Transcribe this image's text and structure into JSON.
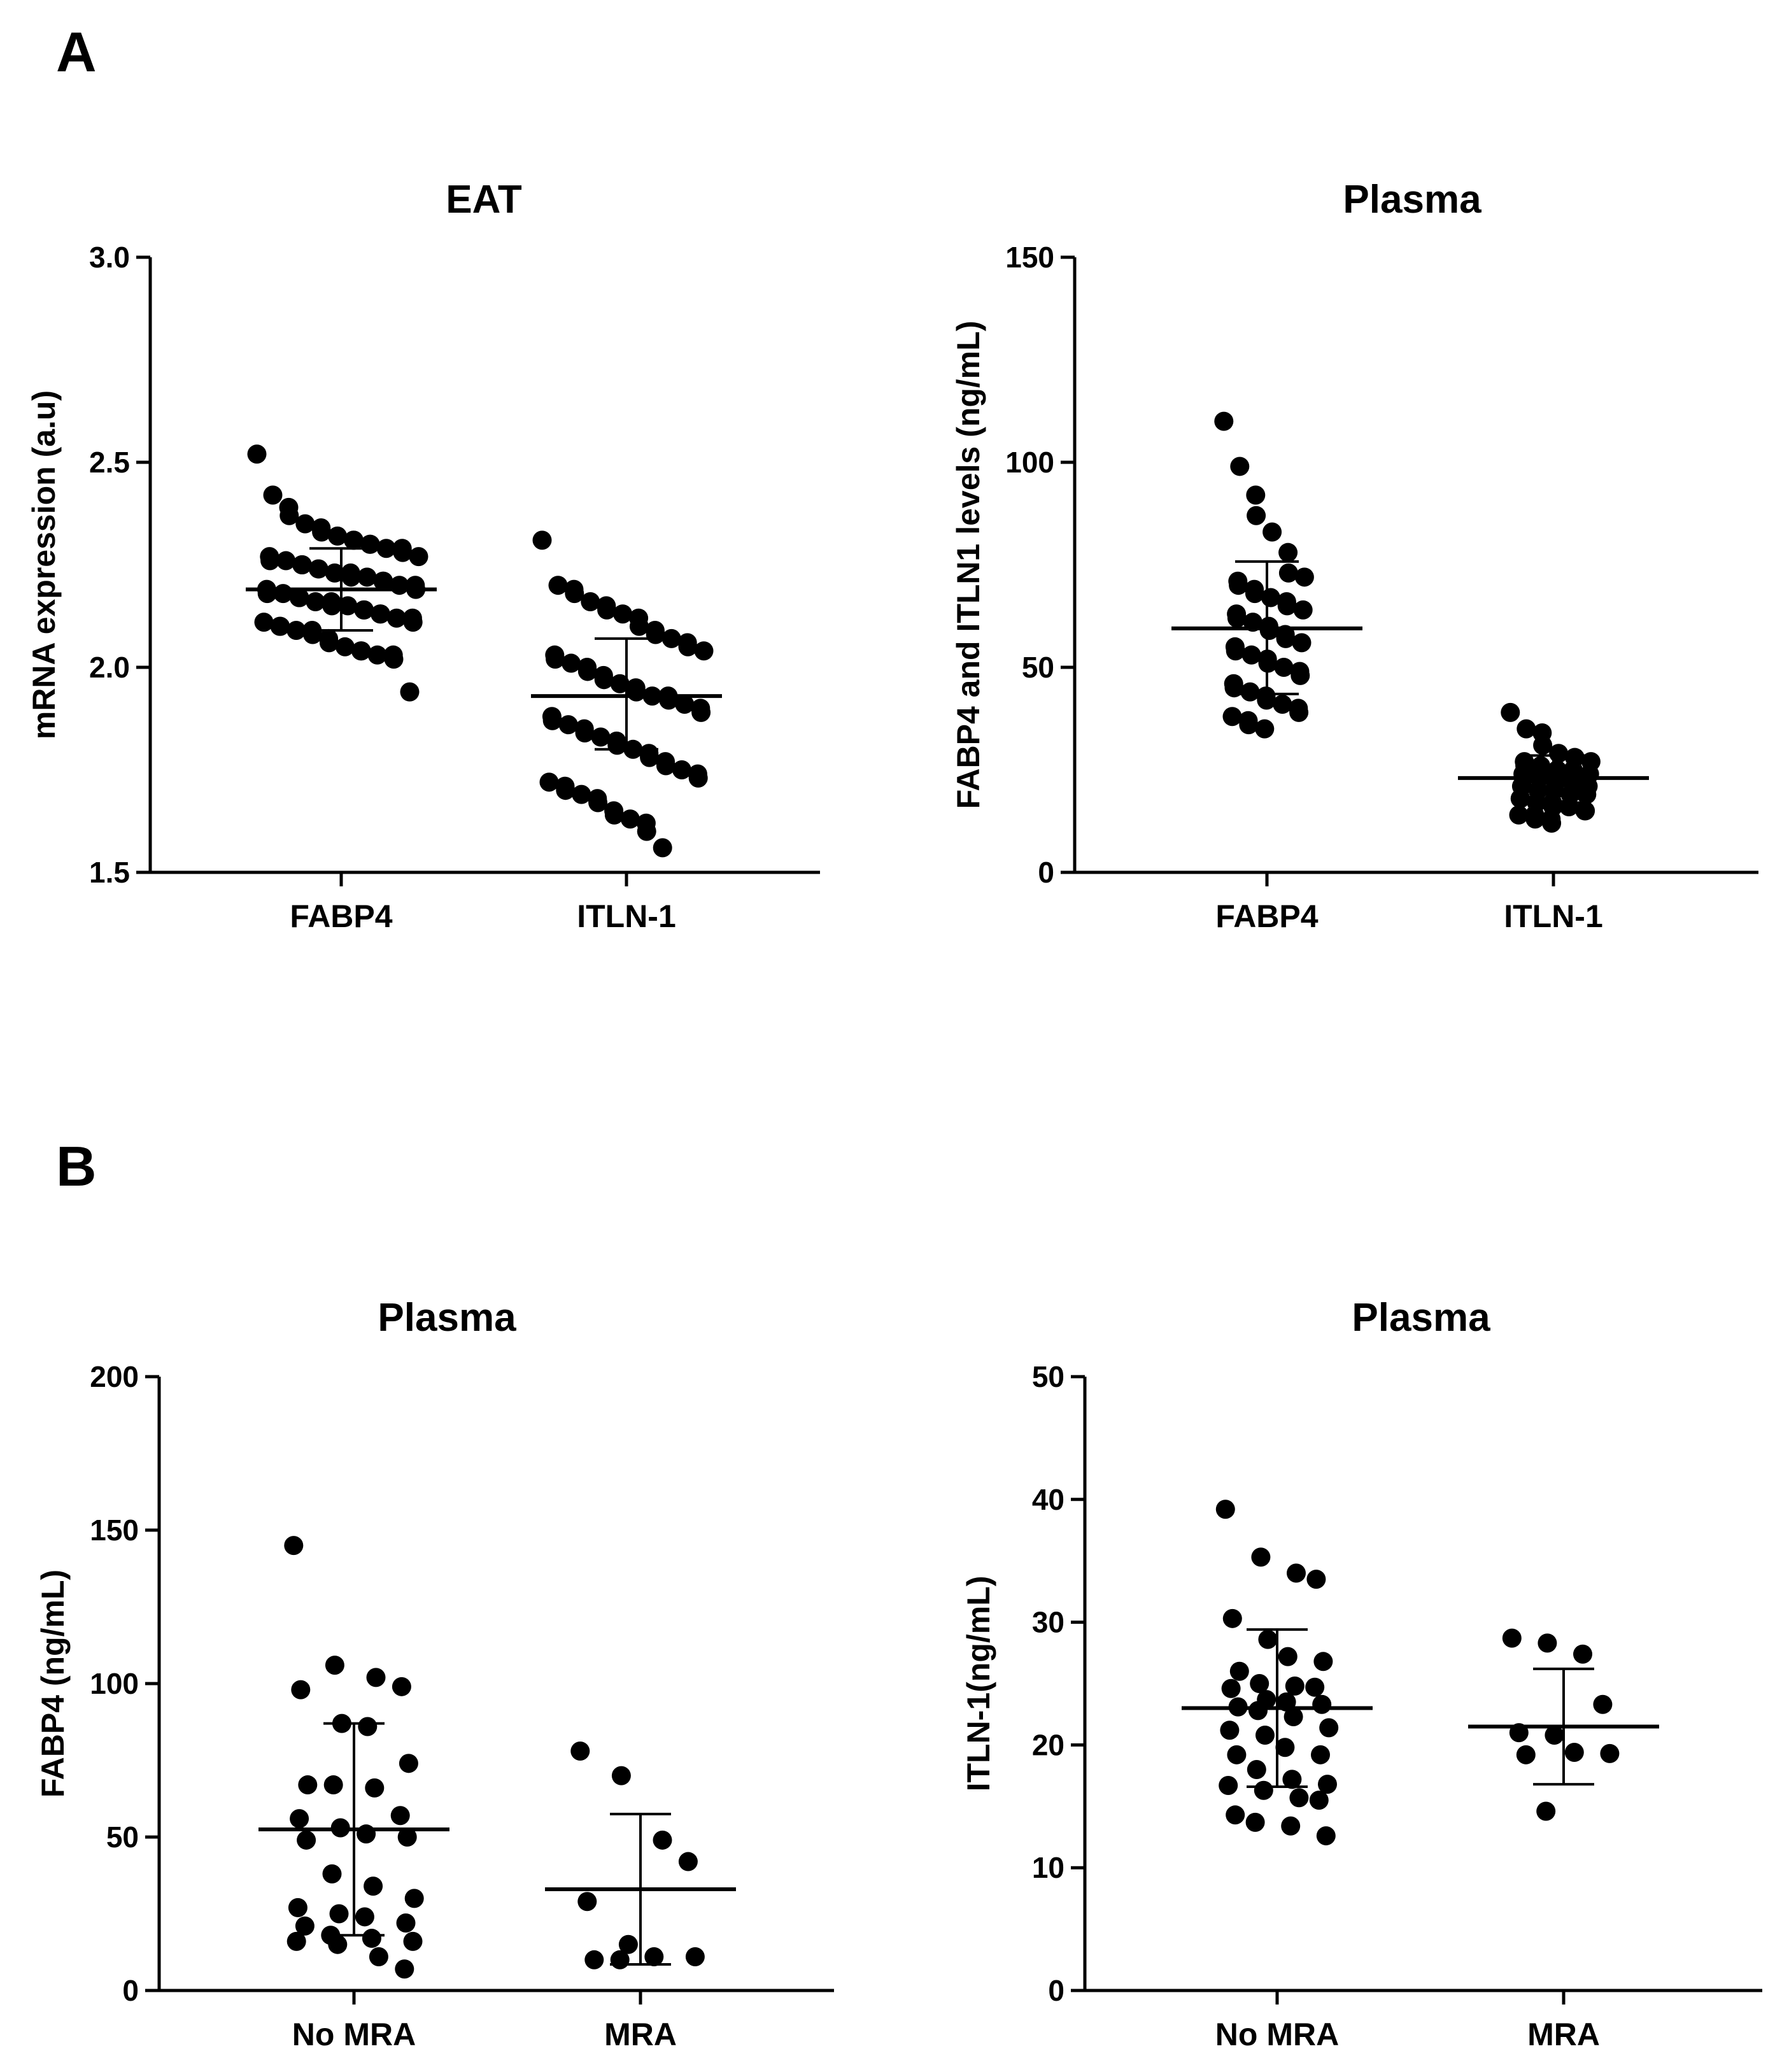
{
  "panel_labels": {
    "a": "A",
    "b": "B"
  },
  "chart_data": [
    {
      "id": "eat",
      "type": "scatter",
      "title": "EAT",
      "ylabel": "mRNA expression (a.u)",
      "ylim": [
        1.5,
        3.0
      ],
      "yticks": [
        1.5,
        2.0,
        2.5,
        3.0
      ],
      "ytick_labels": [
        "1.5",
        "2.0",
        "2.5",
        "3.0"
      ],
      "categories": [
        "FABP4",
        "ITLN-1"
      ],
      "groups": [
        {
          "category": "FABP4",
          "mean": 2.19,
          "sd_low": 2.09,
          "sd_high": 2.29,
          "values": [
            2.52,
            2.42,
            2.39,
            2.37,
            2.35,
            2.34,
            2.33,
            2.32,
            2.31,
            2.31,
            2.3,
            2.3,
            2.29,
            2.29,
            2.28,
            2.27,
            2.27,
            2.26,
            2.26,
            2.25,
            2.25,
            2.24,
            2.24,
            2.23,
            2.23,
            2.22,
            2.22,
            2.21,
            2.21,
            2.2,
            2.2,
            2.19,
            2.19,
            2.18,
            2.18,
            2.17,
            2.17,
            2.16,
            2.16,
            2.15,
            2.15,
            2.14,
            2.14,
            2.13,
            2.13,
            2.12,
            2.12,
            2.11,
            2.11,
            2.1,
            2.1,
            2.09,
            2.09,
            2.08,
            2.07,
            2.06,
            2.05,
            2.04,
            2.04,
            2.03,
            2.03,
            2.02,
            1.94
          ]
        },
        {
          "category": "ITLN-1",
          "mean": 1.93,
          "sd_low": 1.8,
          "sd_high": 2.07,
          "values": [
            2.31,
            2.2,
            2.19,
            2.18,
            2.16,
            2.15,
            2.14,
            2.13,
            2.12,
            2.1,
            2.09,
            2.08,
            2.07,
            2.06,
            2.05,
            2.04,
            2.03,
            2.02,
            2.01,
            2.0,
            1.99,
            1.98,
            1.97,
            1.96,
            1.95,
            1.94,
            1.93,
            1.93,
            1.92,
            1.91,
            1.9,
            1.89,
            1.88,
            1.87,
            1.86,
            1.85,
            1.84,
            1.83,
            1.82,
            1.81,
            1.8,
            1.79,
            1.78,
            1.77,
            1.76,
            1.75,
            1.74,
            1.73,
            1.72,
            1.71,
            1.7,
            1.69,
            1.68,
            1.67,
            1.65,
            1.64,
            1.63,
            1.62,
            1.6,
            1.56
          ]
        }
      ]
    },
    {
      "id": "plasma-a",
      "type": "scatter",
      "title": "Plasma",
      "ylabel": "FABP4 and ITLN1 levels (ng/mL)",
      "ylim": [
        0,
        150
      ],
      "yticks": [
        0,
        50,
        100,
        150
      ],
      "ytick_labels": [
        "0",
        "50",
        "100",
        "150"
      ],
      "categories": [
        "FABP4",
        "ITLN-1"
      ],
      "groups": [
        {
          "category": "FABP4",
          "mean": 59.5,
          "sd_low": 43.5,
          "sd_high": 75.8,
          "values": [
            110,
            99,
            92,
            87,
            83,
            78,
            73,
            72,
            71,
            70,
            69,
            68,
            67,
            66,
            65,
            64,
            63,
            62,
            61,
            60,
            59,
            58,
            57,
            56,
            55,
            54,
            53,
            52,
            51,
            50,
            49,
            48,
            46,
            45,
            44,
            43,
            42,
            41,
            40,
            39,
            38,
            37,
            36,
            35
          ]
        },
        {
          "category": "ITLN-1",
          "mean": 23.0,
          "sd_low": 17.0,
          "sd_high": 28.5,
          "values": [
            39,
            35,
            34,
            31,
            29,
            28,
            28,
            27,
            27,
            26,
            26,
            25,
            25,
            25,
            24,
            24,
            24,
            23,
            23,
            23,
            22,
            22,
            22,
            21,
            21,
            21,
            20,
            20,
            20,
            19,
            19,
            19,
            18,
            18,
            17,
            17,
            16,
            16,
            15,
            15,
            14,
            14,
            13,
            13,
            12
          ]
        }
      ]
    },
    {
      "id": "plasma-fabp4",
      "type": "scatter",
      "title": "Plasma",
      "ylabel": "FABP4 (ng/mL)",
      "ylim": [
        0,
        200
      ],
      "yticks": [
        0,
        50,
        100,
        150,
        200
      ],
      "ytick_labels": [
        "0",
        "50",
        "100",
        "150",
        "200"
      ],
      "categories": [
        "No MRA",
        "MRA"
      ],
      "groups": [
        {
          "category": "No MRA",
          "mean": 52.5,
          "sd_low": 18.0,
          "sd_high": 87.0,
          "values": [
            145,
            106,
            102,
            99,
            98,
            87,
            86,
            74,
            67,
            67,
            66,
            57,
            56,
            53,
            51,
            50,
            49,
            38,
            34,
            30,
            27,
            25,
            24,
            22,
            21,
            18,
            17,
            16,
            16,
            15,
            11,
            7
          ]
        },
        {
          "category": "MRA",
          "mean": 33.0,
          "sd_low": 8.5,
          "sd_high": 57.5,
          "values": [
            78,
            70,
            49,
            42,
            29,
            15,
            11,
            11,
            10,
            10
          ]
        }
      ]
    },
    {
      "id": "plasma-itln1",
      "type": "scatter",
      "title": "Plasma",
      "ylabel": "ITLN-1(ng/mL)",
      "ylim": [
        0,
        50
      ],
      "yticks": [
        0,
        10,
        20,
        30,
        40,
        50
      ],
      "ytick_labels": [
        "0",
        "10",
        "20",
        "30",
        "40",
        "50"
      ],
      "categories": [
        "No  MRA",
        "MRA"
      ],
      "groups": [
        {
          "category": "No MRA",
          "mean": 23.0,
          "sd_low": 16.6,
          "sd_high": 29.4,
          "values": [
            39.2,
            35.3,
            34.0,
            33.5,
            30.3,
            28.6,
            27.2,
            26.8,
            26.0,
            25.0,
            24.8,
            24.7,
            24.6,
            23.7,
            23.5,
            23.3,
            23.1,
            22.8,
            22.3,
            21.4,
            21.2,
            20.8,
            19.8,
            19.2,
            19.2,
            18.0,
            17.2,
            16.8,
            16.7,
            16.3,
            15.7,
            15.5,
            14.3,
            13.7,
            13.4,
            12.6
          ]
        },
        {
          "category": "MRA",
          "mean": 21.5,
          "sd_low": 16.8,
          "sd_high": 26.2,
          "values": [
            28.7,
            28.3,
            27.4,
            23.3,
            21.0,
            20.8,
            19.4,
            19.3,
            19.2,
            14.6
          ]
        }
      ]
    }
  ]
}
